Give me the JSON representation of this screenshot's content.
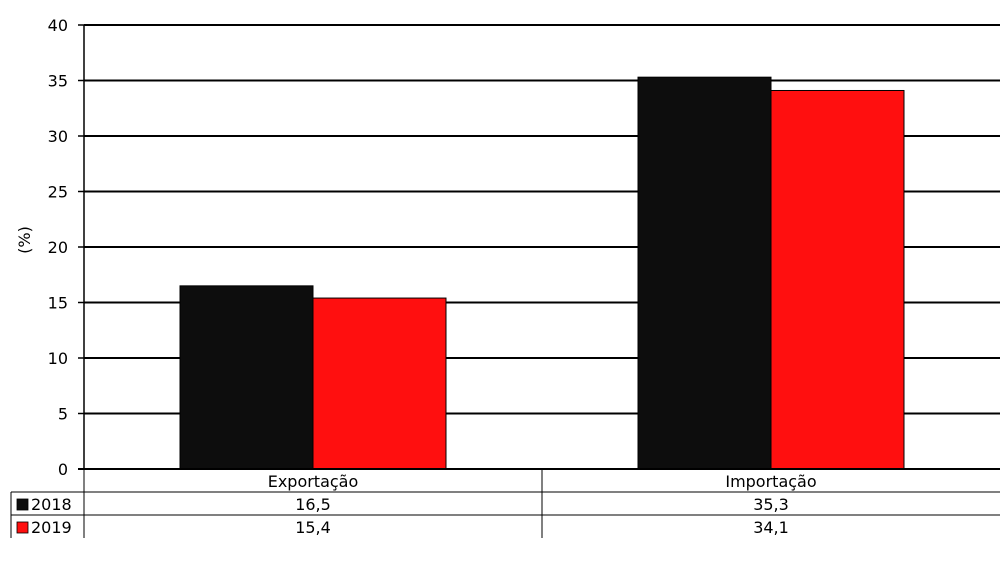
{
  "chart_data": {
    "type": "bar",
    "title": "",
    "xlabel": "",
    "ylabel": "(%)",
    "ylim": [
      0,
      40
    ],
    "yticks": [
      0,
      5,
      10,
      15,
      20,
      25,
      30,
      35,
      40
    ],
    "grid": true,
    "legend": "data-table",
    "categories": [
      "Exportação",
      "Importação"
    ],
    "series": [
      {
        "name": "2018",
        "values": [
          16.5,
          35.3
        ],
        "value_labels": [
          "16,5",
          "35,3"
        ],
        "color": "#0d0d0d"
      },
      {
        "name": "2019",
        "values": [
          15.4,
          34.1
        ],
        "value_labels": [
          "15,4",
          "34,1"
        ],
        "color": "#ff0f0f"
      }
    ]
  }
}
